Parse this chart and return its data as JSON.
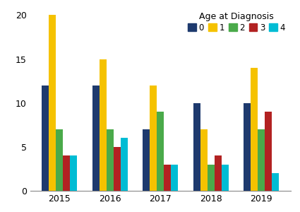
{
  "years": [
    "2015",
    "2016",
    "2017",
    "2018",
    "2019"
  ],
  "ages": [
    "0",
    "1",
    "2",
    "3",
    "4"
  ],
  "values": {
    "0": [
      12,
      12,
      7,
      10,
      10
    ],
    "1": [
      20,
      15,
      12,
      7,
      14
    ],
    "2": [
      7,
      7,
      9,
      3,
      7
    ],
    "3": [
      4,
      5,
      3,
      4,
      9
    ],
    "4": [
      4,
      6,
      3,
      3,
      2
    ]
  },
  "colors": {
    "0": "#1e3a6e",
    "1": "#f5c200",
    "2": "#4aaa4a",
    "3": "#b22222",
    "4": "#00bcd4"
  },
  "legend_title": "Age at Diagnosis",
  "ylim": [
    0,
    21
  ],
  "yticks": [
    0,
    5,
    10,
    15,
    20
  ],
  "bar_width": 0.14,
  "background_color": "#ffffff"
}
